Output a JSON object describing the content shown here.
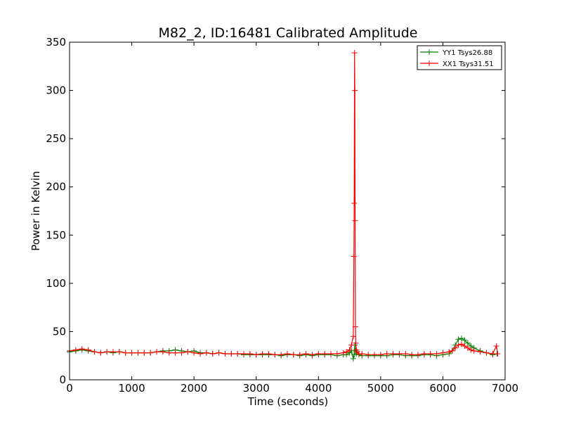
{
  "chart_data": {
    "type": "line",
    "title": "M82_2, ID:16481 Calibrated Amplitude",
    "xlabel": "Time (seconds)",
    "ylabel": "Power in Kelvin",
    "xlim": [
      0,
      7000
    ],
    "ylim": [
      0,
      350
    ],
    "xticks": [
      0,
      1000,
      2000,
      3000,
      4000,
      5000,
      6000,
      7000
    ],
    "yticks": [
      0,
      50,
      100,
      150,
      200,
      250,
      300,
      350
    ],
    "xtick_labels": [
      "0",
      "1000",
      "2000",
      "3000",
      "4000",
      "5000",
      "6000",
      "7000"
    ],
    "ytick_labels": [
      "0",
      "50",
      "100",
      "150",
      "200",
      "250",
      "300",
      "350"
    ],
    "grid": false,
    "legend_position": "top-right",
    "marker": "+",
    "series": [
      {
        "name": "YY1 Tsys26.88",
        "color": "#008000",
        "x": [
          0,
          100,
          200,
          300,
          400,
          500,
          600,
          700,
          800,
          900,
          1000,
          1100,
          1200,
          1300,
          1400,
          1500,
          1600,
          1700,
          1800,
          1900,
          2000,
          2100,
          2200,
          2300,
          2400,
          2500,
          2600,
          2700,
          2800,
          2900,
          3000,
          3100,
          3200,
          3300,
          3400,
          3500,
          3600,
          3700,
          3800,
          3900,
          4000,
          4100,
          4200,
          4300,
          4400,
          4450,
          4500,
          4530,
          4560,
          4575,
          4585,
          4595,
          4610,
          4650,
          4700,
          4800,
          4900,
          5000,
          5100,
          5200,
          5300,
          5400,
          5500,
          5600,
          5700,
          5800,
          5900,
          6000,
          6100,
          6150,
          6200,
          6250,
          6300,
          6350,
          6400,
          6450,
          6500,
          6600,
          6700,
          6800,
          6870
        ],
        "y": [
          29,
          30,
          31,
          30,
          29,
          28,
          29,
          28,
          29,
          28,
          28,
          28,
          28,
          28,
          29,
          30,
          30,
          31,
          30,
          29,
          30,
          28,
          28,
          27,
          28,
          27,
          27,
          27,
          26,
          26,
          26,
          26,
          26,
          26,
          25,
          26,
          26,
          25,
          26,
          25,
          26,
          26,
          26,
          25,
          26,
          26,
          28,
          30,
          22,
          26,
          36,
          30,
          27,
          26,
          25,
          25,
          25,
          25,
          25,
          26,
          26,
          25,
          25,
          25,
          26,
          26,
          25,
          26,
          27,
          30,
          36,
          42,
          43,
          41,
          38,
          35,
          33,
          30,
          28,
          26,
          27
        ]
      },
      {
        "name": "XX1 Tsys31.51",
        "color": "#ff0000",
        "x": [
          0,
          100,
          200,
          300,
          400,
          500,
          600,
          700,
          800,
          900,
          1000,
          1100,
          1200,
          1300,
          1400,
          1500,
          1600,
          1700,
          1800,
          1900,
          2000,
          2100,
          2200,
          2300,
          2400,
          2500,
          2600,
          2700,
          2800,
          2900,
          3000,
          3100,
          3200,
          3300,
          3400,
          3500,
          3600,
          3700,
          3800,
          3900,
          4000,
          4100,
          4200,
          4300,
          4400,
          4450,
          4500,
          4530,
          4560,
          4570,
          4575,
          4580,
          4585,
          4590,
          4595,
          4600,
          4610,
          4620,
          4650,
          4700,
          4800,
          4900,
          5000,
          5100,
          5200,
          5300,
          5400,
          5500,
          5600,
          5700,
          5800,
          5900,
          6000,
          6100,
          6150,
          6200,
          6250,
          6300,
          6350,
          6400,
          6450,
          6500,
          6600,
          6700,
          6800,
          6860,
          6880
        ],
        "y": [
          30,
          31,
          32,
          31,
          29,
          28,
          29,
          29,
          29,
          28,
          28,
          28,
          28,
          28,
          29,
          29,
          28,
          28,
          28,
          29,
          28,
          27,
          28,
          27,
          28,
          27,
          27,
          27,
          27,
          27,
          26,
          27,
          27,
          26,
          26,
          27,
          26,
          26,
          27,
          26,
          27,
          27,
          27,
          27,
          28,
          29,
          31,
          36,
          45,
          128,
          183,
          339,
          300,
          165,
          55,
          38,
          31,
          29,
          27,
          27,
          26,
          26,
          26,
          27,
          27,
          27,
          27,
          26,
          26,
          27,
          27,
          27,
          28,
          29,
          30,
          33,
          36,
          37,
          35,
          33,
          31,
          30,
          29,
          28,
          27,
          35,
          27
        ]
      }
    ]
  }
}
